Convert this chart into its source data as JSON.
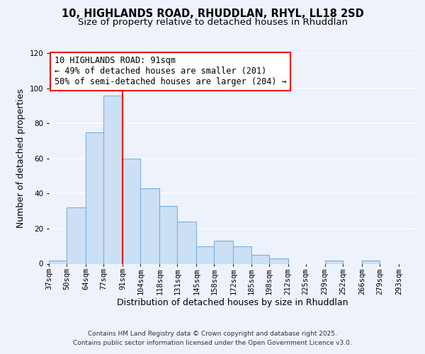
{
  "title_line1": "10, HIGHLANDS ROAD, RHUDDLAN, RHYL, LL18 2SD",
  "title_line2": "Size of property relative to detached houses in Rhuddlan",
  "xlabel": "Distribution of detached houses by size in Rhuddlan",
  "ylabel": "Number of detached properties",
  "bins": [
    37,
    50,
    64,
    77,
    91,
    104,
    118,
    131,
    145,
    158,
    172,
    185,
    198,
    212,
    225,
    239,
    252,
    266,
    279,
    293,
    306
  ],
  "counts": [
    2,
    32,
    75,
    96,
    60,
    43,
    33,
    24,
    10,
    13,
    10,
    5,
    3,
    0,
    0,
    2,
    0,
    2,
    0,
    0
  ],
  "bar_color": "#cce0f5",
  "bar_edge_color": "#7ab0e0",
  "red_line_x": 91,
  "ylim": [
    0,
    120
  ],
  "yticks": [
    0,
    20,
    40,
    60,
    80,
    100,
    120
  ],
  "annotation_line1": "10 HIGHLANDS ROAD: 91sqm",
  "annotation_line2": "← 49% of detached houses are smaller (201)",
  "annotation_line3": "50% of semi-detached houses are larger (204) →",
  "footer_line1": "Contains HM Land Registry data © Crown copyright and database right 2025.",
  "footer_line2": "Contains public sector information licensed under the Open Government Licence v3.0.",
  "background_color": "#eef2fb",
  "grid_color": "#ffffff",
  "title_fontsize": 10.5,
  "subtitle_fontsize": 9.5,
  "axis_label_fontsize": 9,
  "tick_fontsize": 7.5,
  "footer_fontsize": 6.5,
  "annotation_fontsize": 8.5
}
